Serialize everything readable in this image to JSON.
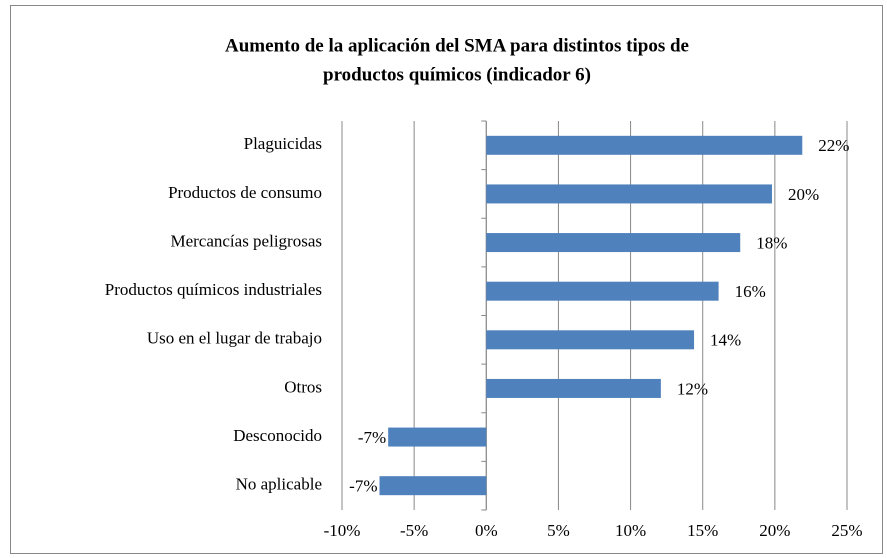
{
  "chart_data": {
    "type": "barh",
    "title": [
      "Aumento de la aplicación del SMA para distintos tipos de",
      "productos químicos  (indicador 6)"
    ],
    "categories": [
      "Plaguicidas",
      "Productos de consumo",
      "Mercancías peligrosas",
      "Productos químicos industriales",
      "Uso en el lugar de trabajo",
      "Otros",
      "Desconocido",
      "No aplicable"
    ],
    "values": [
      21.9,
      19.8,
      17.6,
      16.1,
      14.4,
      12.1,
      -6.8,
      -7.4
    ],
    "value_labels": [
      "22%",
      "20%",
      "18%",
      "16%",
      "14%",
      "12%",
      "-7%",
      "-7%"
    ],
    "color": "#4f81bd",
    "xlim": [
      -10,
      25
    ],
    "xticks": [
      {
        "value": -10,
        "label": "-10%"
      },
      {
        "value": -5,
        "label": "-5%"
      },
      {
        "value": 0,
        "label": "0%"
      },
      {
        "value": 5,
        "label": "5%"
      },
      {
        "value": 10,
        "label": "10%"
      },
      {
        "value": 15,
        "label": "15%"
      },
      {
        "value": 20,
        "label": "20%"
      },
      {
        "value": 25,
        "label": "25%"
      }
    ],
    "grid": true
  }
}
